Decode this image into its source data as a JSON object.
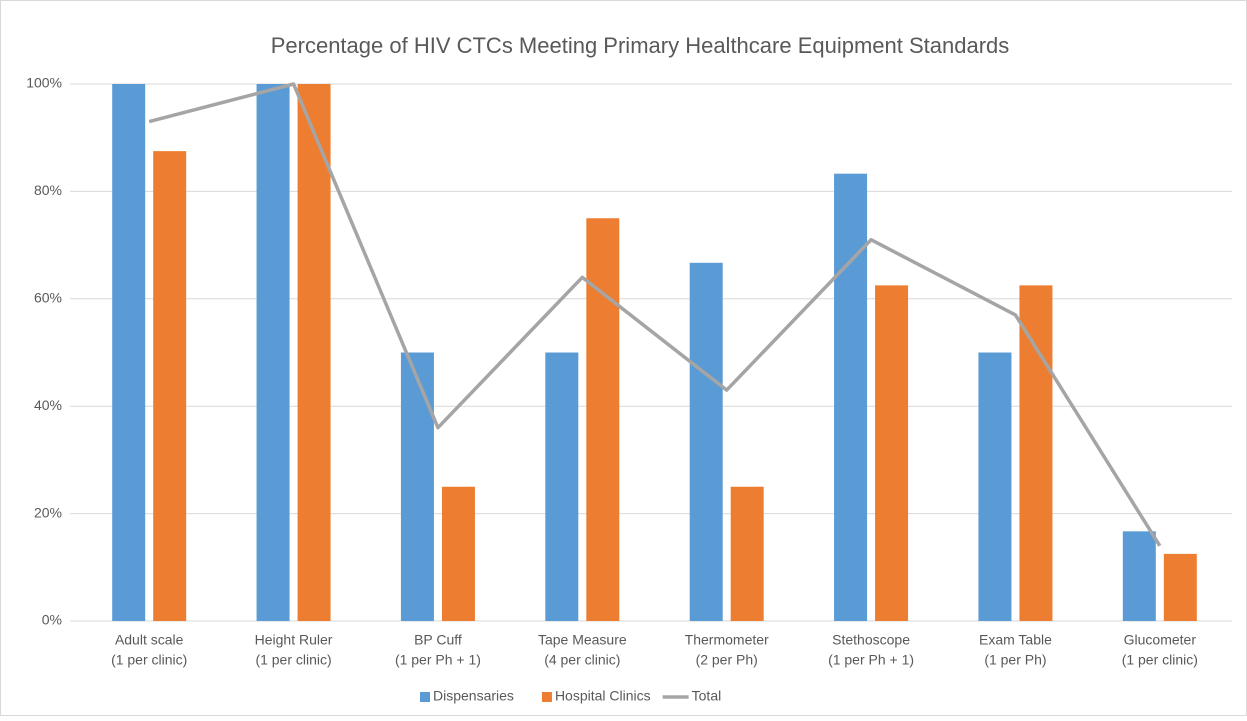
{
  "chart_data": {
    "type": "bar_line",
    "title": "Percentage of HIV CTCs Meeting Primary Healthcare Equipment Standards",
    "categories": [
      [
        "Adult scale",
        "(1 per clinic)"
      ],
      [
        "Height Ruler",
        "(1 per clinic)"
      ],
      [
        "BP Cuff",
        "(1 per Ph + 1)"
      ],
      [
        "Tape Measure",
        "(4 per clinic)"
      ],
      [
        "Thermometer",
        "(2 per Ph)"
      ],
      [
        "Stethoscope",
        "(1 per Ph + 1)"
      ],
      [
        "Exam Table",
        "(1 per Ph)"
      ],
      [
        "Glucometer",
        "(1 per clinic)"
      ]
    ],
    "series": [
      {
        "name": "Dispensaries",
        "type": "bar",
        "color": "#5b9bd5",
        "values": [
          100,
          100,
          50,
          50,
          66.7,
          83.3,
          50,
          16.7
        ]
      },
      {
        "name": "Hospital Clinics",
        "type": "bar",
        "color": "#ed7d31",
        "values": [
          87.5,
          100,
          25,
          75,
          25,
          62.5,
          62.5,
          12.5
        ]
      },
      {
        "name": "Total",
        "type": "line",
        "color": "#a5a5a5",
        "values": [
          93,
          100,
          36,
          64,
          43,
          71,
          57,
          14
        ]
      }
    ],
    "ylim": [
      0,
      100
    ],
    "yticks": [
      {
        "value": 0,
        "label": "0%"
      },
      {
        "value": 20,
        "label": "20%"
      },
      {
        "value": 40,
        "label": "40%"
      },
      {
        "value": 60,
        "label": "60%"
      },
      {
        "value": 80,
        "label": "80%"
      },
      {
        "value": 100,
        "label": "100%"
      }
    ],
    "grid": true,
    "legend": "bottom"
  }
}
